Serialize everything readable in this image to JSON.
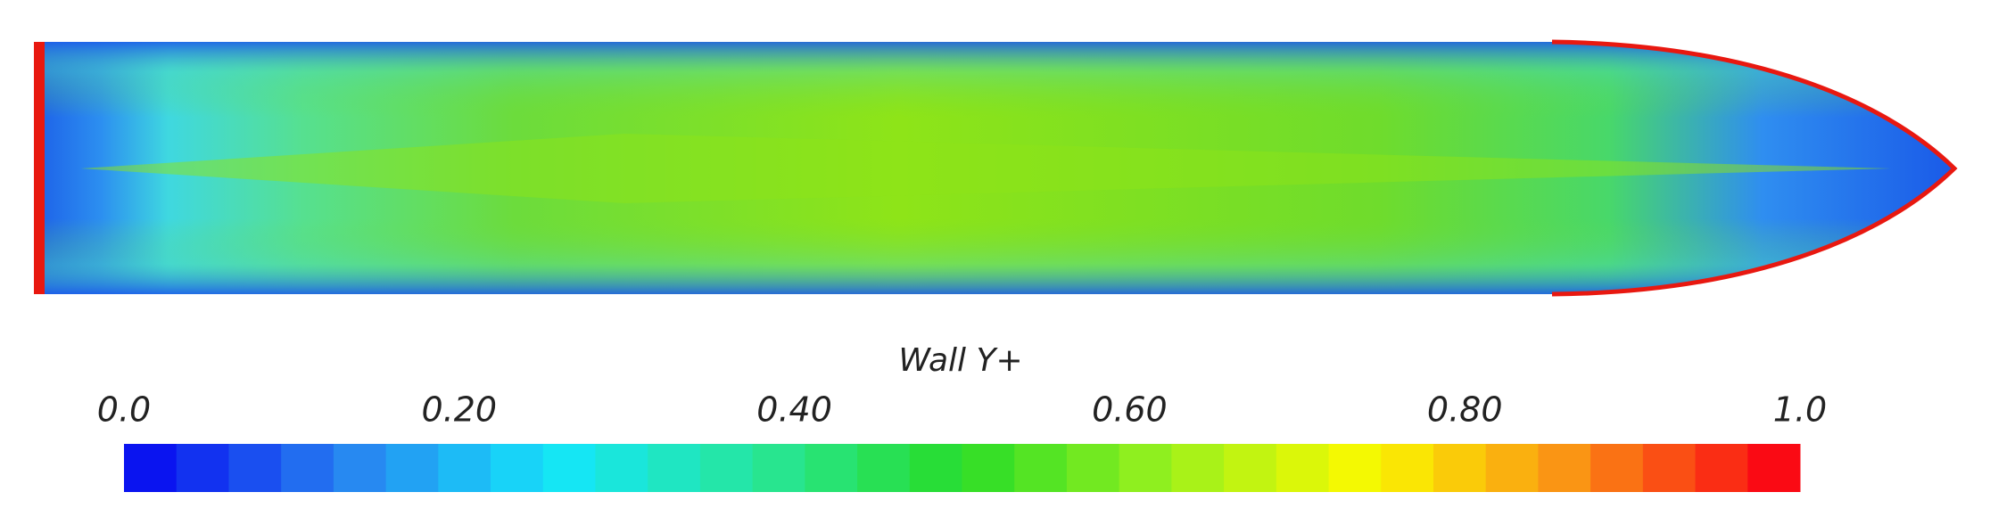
{
  "colorbar": {
    "title": "Wall Y+",
    "range": [
      0,
      1
    ],
    "ticks": [
      {
        "value": 0,
        "label": "0.0"
      },
      {
        "value": 0.2,
        "label": "0.20"
      },
      {
        "value": 0.4,
        "label": "0.40"
      },
      {
        "value": 0.6,
        "label": "0.60"
      },
      {
        "value": 0.8,
        "label": "0.80"
      },
      {
        "value": 1,
        "label": "1.0"
      }
    ]
  }
}
